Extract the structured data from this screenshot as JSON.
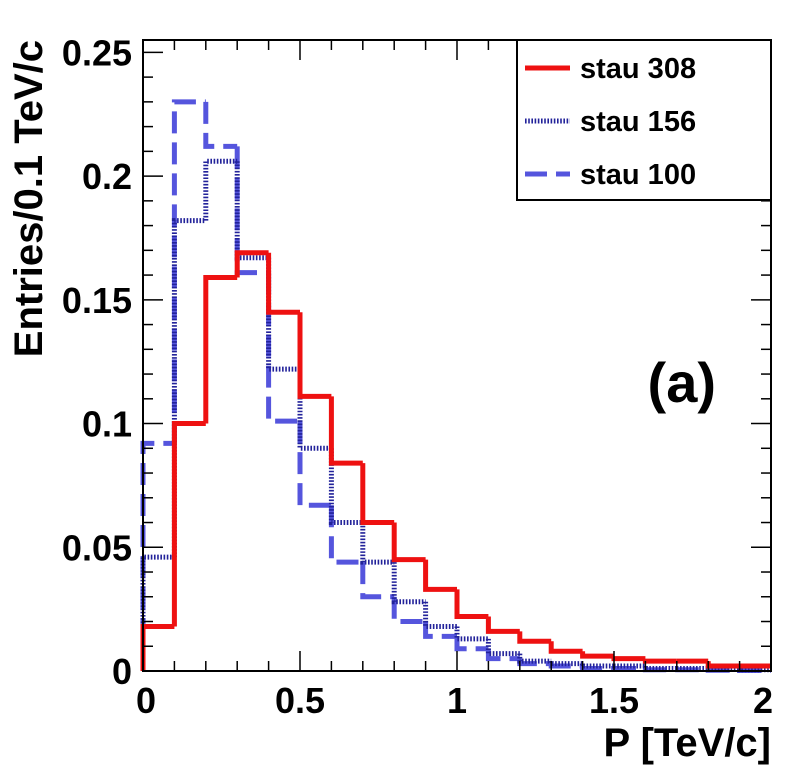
{
  "chart_data": {
    "type": "histogram",
    "title": "",
    "xlabel": "P [TeV/c]",
    "ylabel": "Entries/0.1 TeV/c",
    "xlim": [
      0,
      2
    ],
    "ylim": [
      0,
      0.255
    ],
    "bin_edges": [
      0,
      0.1,
      0.2,
      0.3,
      0.4,
      0.5,
      0.6,
      0.7,
      0.8,
      0.9,
      1.0,
      1.1,
      1.2,
      1.3,
      1.4,
      1.5,
      1.6,
      1.7,
      1.8,
      1.9,
      2.0
    ],
    "x_ticks": [
      {
        "value": 0,
        "label": "0"
      },
      {
        "value": 0.5,
        "label": "0.5"
      },
      {
        "value": 1,
        "label": "1"
      },
      {
        "value": 1.5,
        "label": "1.5"
      },
      {
        "value": 2,
        "label": "2"
      }
    ],
    "y_ticks": [
      {
        "value": 0,
        "label": "0"
      },
      {
        "value": 0.05,
        "label": "0.05"
      },
      {
        "value": 0.1,
        "label": "0.1"
      },
      {
        "value": 0.15,
        "label": "0.15"
      },
      {
        "value": 0.2,
        "label": "0.2"
      },
      {
        "value": 0.25,
        "label": "0.25"
      }
    ],
    "series": [
      {
        "name": "stau 308",
        "style": "solid",
        "color": "#ee1111",
        "values": [
          0.018,
          0.1,
          0.159,
          0.169,
          0.145,
          0.111,
          0.084,
          0.06,
          0.045,
          0.033,
          0.022,
          0.016,
          0.012,
          0.008,
          0.006,
          0.005,
          0.004,
          0.004,
          0.002,
          0.002
        ]
      },
      {
        "name": "stau 156",
        "style": "dotted",
        "color": "#22229a",
        "values": [
          0.046,
          0.182,
          0.206,
          0.167,
          0.122,
          0.09,
          0.06,
          0.044,
          0.028,
          0.018,
          0.013,
          0.007,
          0.004,
          0.003,
          0.002,
          0.002,
          0.001,
          0.001,
          0.001,
          0.0005
        ]
      },
      {
        "name": "stau 100",
        "style": "dashed",
        "color": "#5555dd",
        "values": [
          0.092,
          0.23,
          0.212,
          0.161,
          0.101,
          0.067,
          0.044,
          0.03,
          0.02,
          0.014,
          0.009,
          0.005,
          0.003,
          0.002,
          0.001,
          0.001,
          0.0005,
          0.0005,
          0.0003,
          0.0002
        ]
      }
    ],
    "legend_position": "top-right",
    "annotation": "(a)"
  }
}
